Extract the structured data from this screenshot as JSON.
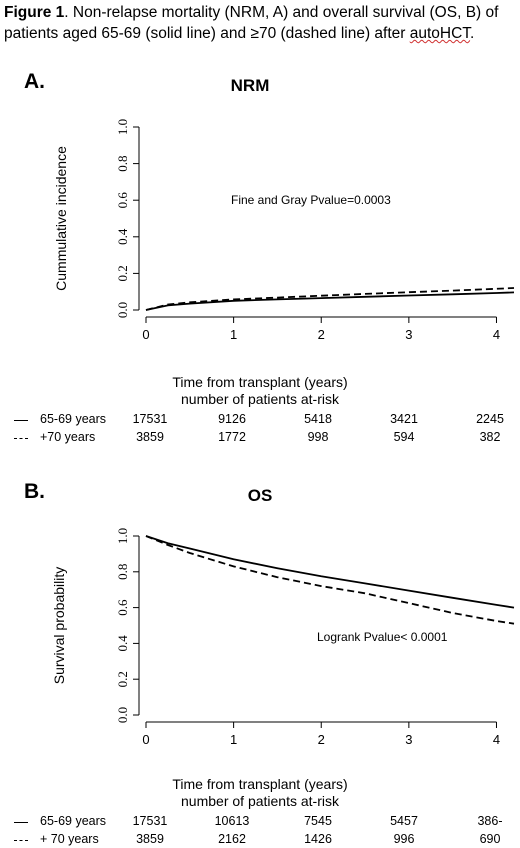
{
  "caption": {
    "bold": "Figure 1",
    "text": ". Non-relapse mortality (NRM, A) and overall survival (OS, B) of patients aged 65-69 (solid line) and ≥70 (dashed line) after ",
    "underlined": "autoHCT",
    "end": "."
  },
  "chart_data": [
    {
      "type": "line",
      "panel": "A.",
      "title": "NRM",
      "ylabel": "Cummulative incidence",
      "xlabel": "Time from transplant (years)",
      "ylim": [
        0,
        1
      ],
      "xlim": [
        0,
        4.2
      ],
      "yticks": [
        "0.0",
        "0.2",
        "0.4",
        "0.6",
        "0.8",
        "1.0"
      ],
      "xticks": [
        "0",
        "1",
        "2",
        "3",
        "4"
      ],
      "annotation": "Fine and Gray Pvalue=0.0003",
      "series": [
        {
          "label": "65-69 years",
          "style": "solid",
          "x": [
            0,
            0.25,
            0.5,
            1,
            1.5,
            2,
            2.5,
            3,
            3.5,
            4,
            4.2
          ],
          "y": [
            0,
            0.025,
            0.035,
            0.05,
            0.058,
            0.065,
            0.072,
            0.079,
            0.086,
            0.093,
            0.096
          ]
        },
        {
          "label": "+70 years",
          "style": "dashed",
          "x": [
            0,
            0.25,
            0.5,
            1,
            1.5,
            2,
            2.5,
            3,
            3.5,
            4,
            4.2
          ],
          "y": [
            0,
            0.03,
            0.042,
            0.058,
            0.068,
            0.078,
            0.088,
            0.097,
            0.106,
            0.116,
            0.12
          ]
        }
      ],
      "risk_table": {
        "title": "number of patients at-risk",
        "rows": [
          {
            "label": "65-69 years",
            "style": "solid",
            "values": [
              "17531",
              "9126",
              "5418",
              "3421",
              "2245"
            ]
          },
          {
            "label": "+70 years",
            "style": "dashed",
            "values": [
              "3859",
              "1772",
              "998",
              "594",
              "382"
            ]
          }
        ]
      }
    },
    {
      "type": "line",
      "panel": "B.",
      "title": "OS",
      "ylabel": "Survival probability",
      "xlabel": "Time from transplant (years)",
      "ylim": [
        0,
        1
      ],
      "xlim": [
        0,
        4.2
      ],
      "yticks": [
        "0.0",
        "0.2",
        "0.4",
        "0.6",
        "0.8",
        "1.0"
      ],
      "xticks": [
        "0",
        "1",
        "2",
        "3",
        "4"
      ],
      "annotation": "Logrank Pvalue< 0.0001",
      "series": [
        {
          "label": "65-69 years",
          "style": "solid",
          "x": [
            0,
            0.25,
            0.5,
            1,
            1.5,
            2,
            2.5,
            3,
            3.5,
            4,
            4.2
          ],
          "y": [
            1,
            0.96,
            0.93,
            0.87,
            0.82,
            0.775,
            0.735,
            0.695,
            0.655,
            0.615,
            0.6
          ]
        },
        {
          "label": "+ 70 years",
          "style": "dashed",
          "x": [
            0,
            0.25,
            0.5,
            1,
            1.5,
            2,
            2.5,
            3,
            3.5,
            4,
            4.2
          ],
          "y": [
            1,
            0.95,
            0.905,
            0.83,
            0.77,
            0.72,
            0.68,
            0.625,
            0.57,
            0.525,
            0.51
          ]
        }
      ],
      "risk_table": {
        "title": "number of patients at-risk",
        "rows": [
          {
            "label": "65-69 years",
            "style": "solid",
            "values": [
              "17531",
              "10613",
              "7545",
              "5457",
              "386-"
            ]
          },
          {
            "label": "+ 70 years",
            "style": "dashed",
            "values": [
              "3859",
              "2162",
              "1426",
              "996",
              "690"
            ]
          }
        ]
      }
    }
  ]
}
